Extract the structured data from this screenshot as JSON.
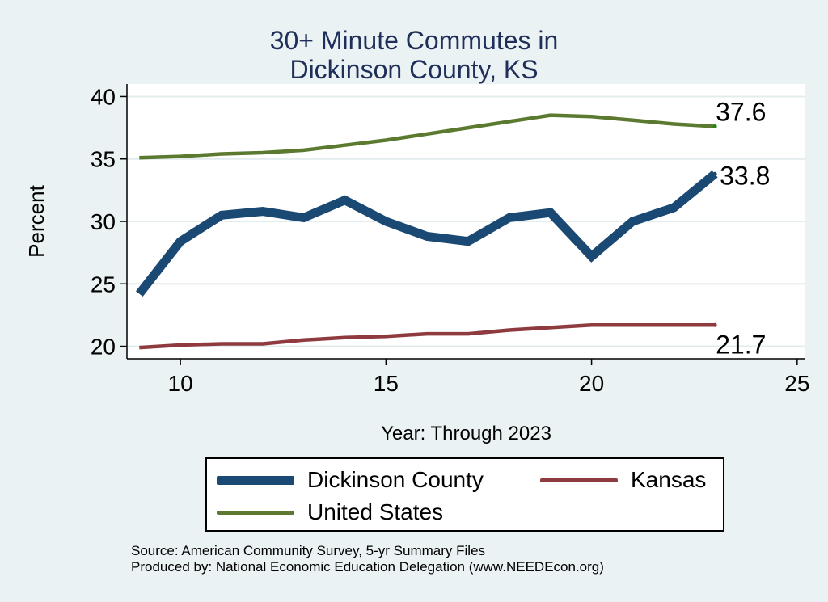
{
  "chart_data": {
    "type": "line",
    "title": "30+ Minute Commutes in",
    "title_line2": "Dickinson County, KS",
    "xlabel": "Year: Through 2023",
    "ylabel": "Percent",
    "xlim": [
      8.7,
      25.2
    ],
    "ylim": [
      19.0,
      41.0
    ],
    "xticks": [
      10,
      15,
      20,
      25
    ],
    "xtick_labels": [
      "10",
      "15",
      "20",
      "25"
    ],
    "yticks": [
      20,
      25,
      30,
      35,
      40
    ],
    "ytick_labels": [
      "20",
      "25",
      "30",
      "35",
      "40"
    ],
    "grid": true,
    "x": [
      9,
      10,
      11,
      12,
      13,
      14,
      15,
      16,
      17,
      18,
      19,
      20,
      21,
      22,
      23
    ],
    "series": [
      {
        "name": "Dickinson County",
        "color": "#1a4a74",
        "values": [
          24.2,
          28.4,
          30.5,
          30.8,
          30.3,
          31.7,
          30.0,
          28.8,
          28.4,
          30.3,
          30.7,
          27.2,
          30.0,
          31.1,
          33.8
        ],
        "end_label": "33.8"
      },
      {
        "name": "Kansas",
        "color": "#8e3a3f",
        "values": [
          19.9,
          20.1,
          20.2,
          20.2,
          20.5,
          20.7,
          20.8,
          21.0,
          21.0,
          21.3,
          21.5,
          21.7,
          21.7,
          21.7,
          21.7
        ],
        "end_label": "21.7"
      },
      {
        "name": "United States",
        "color": "#5b7a30",
        "values": [
          35.1,
          35.2,
          35.4,
          35.5,
          35.7,
          36.1,
          36.5,
          37.0,
          37.5,
          38.0,
          38.5,
          38.4,
          38.1,
          37.8,
          37.6
        ],
        "end_label": "37.6"
      }
    ],
    "legend": {
      "placement": "bottom",
      "entries": [
        "Dickinson County",
        "Kansas",
        "United States"
      ]
    }
  },
  "source": {
    "line1": "Source: American Community Survey, 5-yr Summary Files",
    "line2": "Produced by: National Economic Education Delegation (www.NEEDEcon.org)"
  },
  "colors": {
    "background": "#eaf2f3",
    "plot_background": "#ffffff",
    "grid": "#e3eced",
    "title": "#1f2f5a"
  }
}
